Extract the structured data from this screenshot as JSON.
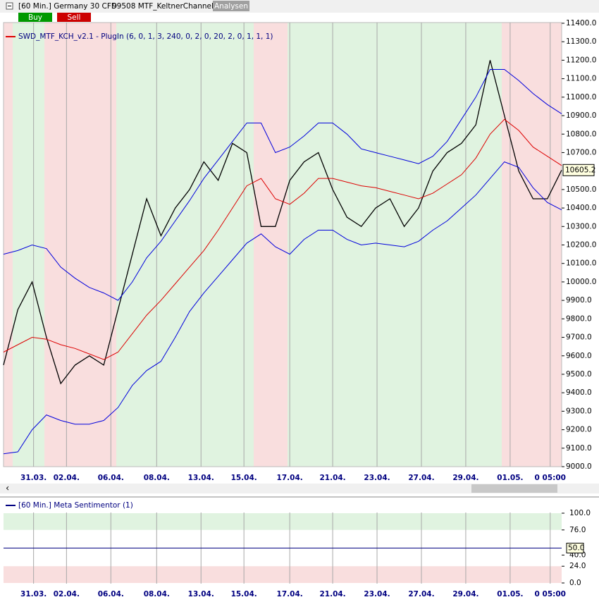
{
  "toolbar": {
    "title": "[60 Min.] Germany 30 CFD",
    "indicator": "99508 MTF_KeltnerChannel",
    "analysen": "Analysen",
    "buy": "Buy",
    "sell": "Sell"
  },
  "chart_data": [
    {
      "type": "line",
      "x": [
        0,
        1,
        2,
        3,
        4,
        5,
        6,
        7,
        8,
        9,
        10,
        11,
        12,
        13,
        14,
        15,
        16,
        17,
        18,
        19,
        20,
        21,
        22,
        23,
        24,
        25,
        26,
        27,
        28,
        29,
        30,
        31,
        32,
        33,
        34,
        35,
        36,
        37,
        38,
        39
      ],
      "xlim": [
        0,
        39
      ],
      "xticks": [
        {
          "value": 2.1,
          "label": "31.03."
        },
        {
          "value": 4.4,
          "label": "02.04."
        },
        {
          "value": 7.5,
          "label": "06.04."
        },
        {
          "value": 10.7,
          "label": "08.04."
        },
        {
          "value": 13.8,
          "label": "13.04."
        },
        {
          "value": 16.8,
          "label": "15.04."
        },
        {
          "value": 20,
          "label": "17.04."
        },
        {
          "value": 23,
          "label": "21.04."
        },
        {
          "value": 26.1,
          "label": "23.04."
        },
        {
          "value": 29.2,
          "label": "27.04."
        },
        {
          "value": 32.3,
          "label": "29.04."
        },
        {
          "value": 35.4,
          "label": "01.05."
        },
        {
          "value": 38.2,
          "label": "0 05:00"
        }
      ],
      "ylim": [
        9000,
        11400
      ],
      "yticks": [
        {
          "value": 11400,
          "label": "11400.0"
        },
        {
          "value": 11300,
          "label": "11300.0"
        },
        {
          "value": 11200,
          "label": "11200.0"
        },
        {
          "value": 11100,
          "label": "11100.0"
        },
        {
          "value": 11000,
          "label": "11000.0"
        },
        {
          "value": 10900,
          "label": "10900.0"
        },
        {
          "value": 10800,
          "label": "10800.0"
        },
        {
          "value": 10700,
          "label": "10700.0"
        },
        {
          "value": 10500,
          "label": "10500.0"
        },
        {
          "value": 10400,
          "label": "10400.0"
        },
        {
          "value": 10300,
          "label": "10300.0"
        },
        {
          "value": 10200,
          "label": "10200.0"
        },
        {
          "value": 10100,
          "label": "10100.0"
        },
        {
          "value": 10000,
          "label": "10000.0"
        },
        {
          "value": 9900,
          "label": "9900.0"
        },
        {
          "value": 9800,
          "label": "9800.0"
        },
        {
          "value": 9700,
          "label": "9700.0"
        },
        {
          "value": 9600,
          "label": "9600.0"
        },
        {
          "value": 9500,
          "label": "9500.0"
        },
        {
          "value": 9400,
          "label": "9400.0"
        },
        {
          "value": 9300,
          "label": "9300.0"
        },
        {
          "value": 9200,
          "label": "9200.0"
        },
        {
          "value": 9100,
          "label": "9100.0"
        },
        {
          "value": 9000,
          "label": "9000.0"
        }
      ],
      "grid": true,
      "series": [
        {
          "color": "#000000",
          "last_label": "10605.2",
          "values": [
            9550,
            9850,
            10000,
            9700,
            9450,
            9550,
            9600,
            9550,
            9850,
            10150,
            10450,
            10250,
            10400,
            10500,
            10650,
            10550,
            10750,
            10700,
            10300,
            10300,
            10550,
            10650,
            10700,
            10500,
            10350,
            10300,
            10400,
            10450,
            10300,
            10400,
            10600,
            10700,
            10750,
            10850,
            11200,
            10900,
            10600,
            10450,
            10450,
            10605.2
          ]
        },
        {
          "name": "SWD_MTF_KCH_v2.1 - PlugIn  (6, 0, 1, 3, 240, 0, 2, 0, 20, 2, 0, 1, 1, 1)",
          "color": "#dd0000",
          "values": [
            9620,
            9660,
            9700,
            9690,
            9660,
            9640,
            9610,
            9580,
            9620,
            9720,
            9820,
            9900,
            9990,
            10080,
            10170,
            10280,
            10400,
            10520,
            10560,
            10450,
            10420,
            10480,
            10560,
            10560,
            10540,
            10520,
            10510,
            10490,
            10470,
            10450,
            10480,
            10530,
            10580,
            10670,
            10800,
            10880,
            10820,
            10730,
            10680,
            10630
          ]
        },
        {
          "color": "#0000dd",
          "values": [
            10150,
            10170,
            10200,
            10180,
            10080,
            10020,
            9970,
            9940,
            9900,
            10000,
            10130,
            10220,
            10330,
            10440,
            10560,
            10660,
            10760,
            10860,
            10860,
            10700,
            10730,
            10790,
            10860,
            10860,
            10800,
            10720,
            10700,
            10680,
            10660,
            10640,
            10680,
            10760,
            10880,
            11000,
            11150,
            11150,
            11090,
            11020,
            10960,
            10910
          ]
        },
        {
          "color": "#0000dd",
          "values": [
            9070,
            9080,
            9200,
            9280,
            9250,
            9230,
            9230,
            9250,
            9320,
            9440,
            9520,
            9570,
            9700,
            9840,
            9940,
            10030,
            10120,
            10210,
            10260,
            10190,
            10150,
            10230,
            10280,
            10280,
            10230,
            10200,
            10210,
            10200,
            10190,
            10220,
            10280,
            10330,
            10400,
            10470,
            10560,
            10650,
            10620,
            10510,
            10430,
            10390
          ]
        }
      ]
    },
    {
      "type": "hline",
      "ylim": [
        0,
        100
      ],
      "yticks": [
        {
          "value": 100,
          "label": "100.0"
        },
        {
          "value": 76,
          "label": "76.0"
        },
        {
          "value": 40,
          "label": "40.0"
        },
        {
          "value": 24,
          "label": "24.0"
        },
        {
          "value": 0,
          "label": "0.0"
        }
      ],
      "series": [
        {
          "name": "[60 Min.] Meta Sentimentor  (1)",
          "color": "#000080",
          "values": [
            50
          ],
          "value_labels": [
            "50.0"
          ]
        }
      ]
    }
  ]
}
